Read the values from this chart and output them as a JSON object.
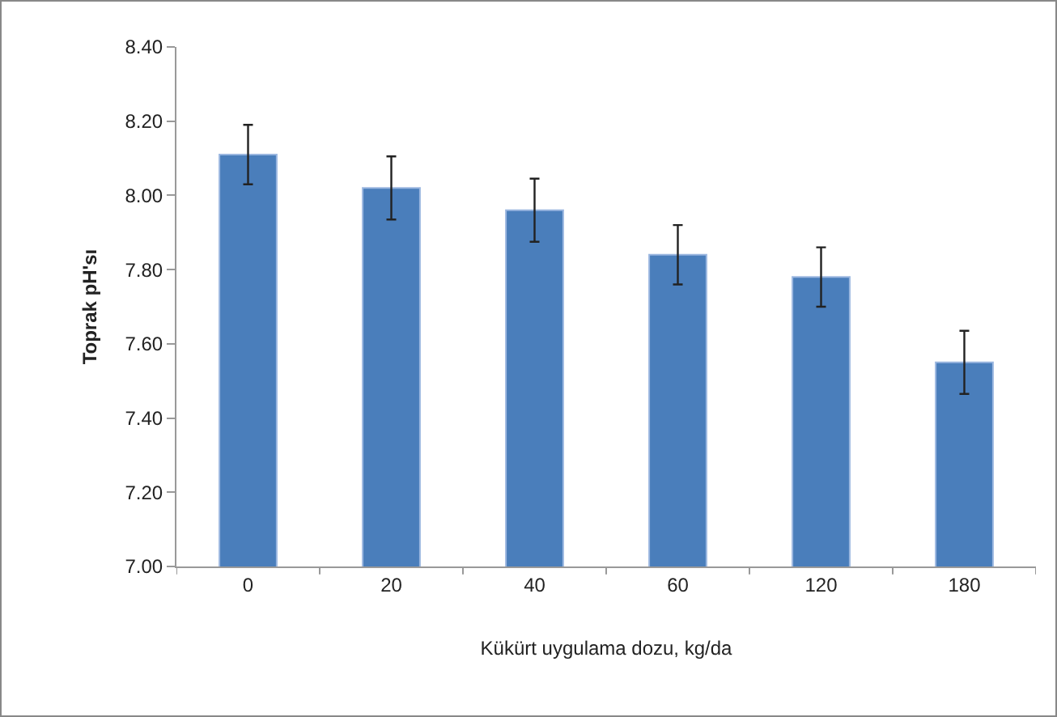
{
  "chart_data": {
    "type": "bar",
    "xlabel": "Kükürt uygulama dozu, kg/da",
    "ylabel": "Toprak pH'sı",
    "categories": [
      "0",
      "20",
      "40",
      "60",
      "120",
      "180"
    ],
    "values": [
      8.11,
      8.02,
      7.96,
      7.84,
      7.78,
      7.55
    ],
    "errors": [
      0.08,
      0.085,
      0.085,
      0.08,
      0.08,
      0.085
    ],
    "color": "#4a7ebb",
    "ylim": [
      7.0,
      8.4
    ],
    "yticks": [
      {
        "value": 7.0,
        "label": "7.00"
      },
      {
        "value": 7.2,
        "label": "7.20"
      },
      {
        "value": 7.4,
        "label": "7.40"
      },
      {
        "value": 7.6,
        "label": "7.60"
      },
      {
        "value": 7.8,
        "label": "7.80"
      },
      {
        "value": 8.0,
        "label": "8.00"
      },
      {
        "value": 8.2,
        "label": "8.20"
      },
      {
        "value": 8.4,
        "label": "8.40"
      }
    ],
    "grid": false
  }
}
